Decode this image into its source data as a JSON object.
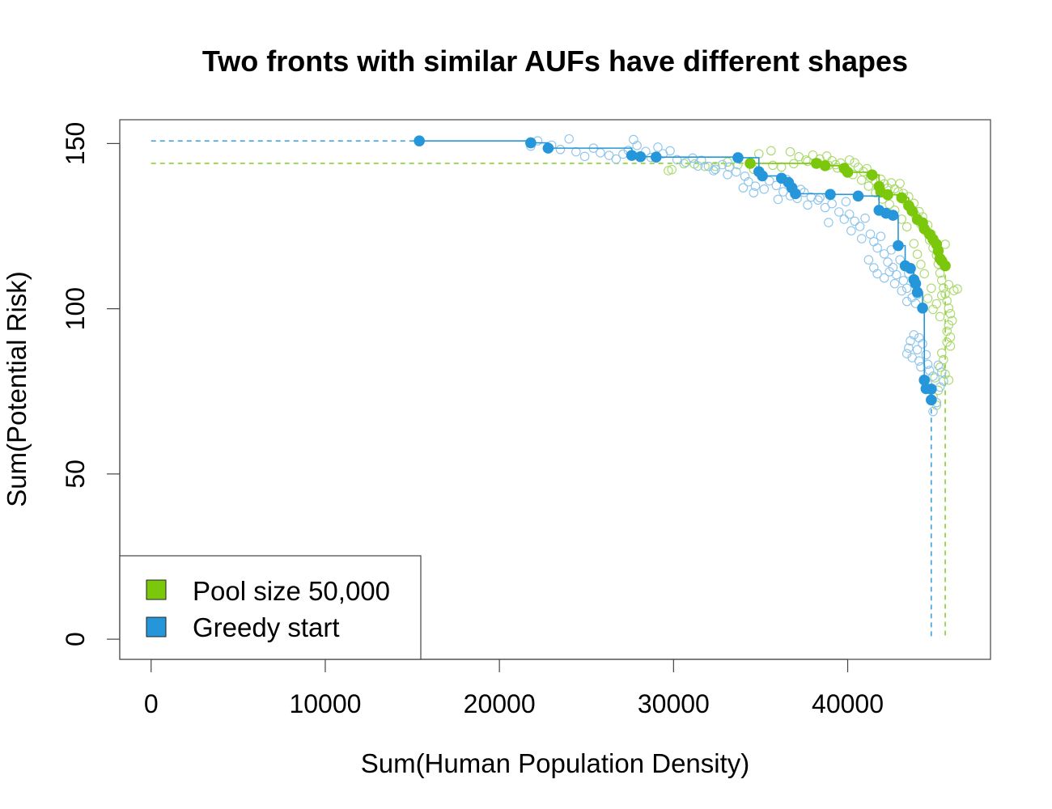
{
  "chart_data": {
    "type": "scatter",
    "title": "Two fronts with similar AUFs have different shapes",
    "xlabel": "Sum(Human Population Density)",
    "ylabel": "Sum(Potential Risk)",
    "xlim": [
      -1800,
      48200
    ],
    "ylim": [
      -6.1,
      157.2
    ],
    "x_ticks": [
      0,
      10000,
      20000,
      30000,
      40000
    ],
    "x_tick_labels": [
      "0",
      "10000",
      "20000",
      "30000",
      "40000"
    ],
    "y_ticks": [
      0,
      50,
      100,
      150
    ],
    "y_tick_labels": [
      "0",
      "50",
      "100",
      "150"
    ],
    "grid": false,
    "legend_position": "bottom-left",
    "legend": [
      {
        "label": "Pool size 50,000",
        "color": "#7ac70c"
      },
      {
        "label": "Greedy start",
        "color": "#2596d9"
      }
    ],
    "series": [
      {
        "name": "Pool size 50,000",
        "color": "#7ac70c",
        "light_color": "#a9d96a",
        "front": [
          [
            34400,
            144
          ],
          [
            38200,
            144
          ],
          [
            38700,
            143.3
          ],
          [
            39800,
            142.5
          ],
          [
            40000,
            141.3
          ],
          [
            41400,
            140.5
          ],
          [
            41800,
            137
          ],
          [
            41900,
            135.3
          ],
          [
            42300,
            134.5
          ],
          [
            43100,
            133.6
          ],
          [
            43500,
            131.2
          ],
          [
            43700,
            129.6
          ],
          [
            44000,
            127
          ],
          [
            44300,
            126
          ],
          [
            44400,
            124.2
          ],
          [
            44700,
            122.5
          ],
          [
            44900,
            121
          ],
          [
            45100,
            119.5
          ],
          [
            45200,
            117.5
          ],
          [
            45300,
            115.2
          ],
          [
            45400,
            114.5
          ],
          [
            45600,
            113
          ]
        ],
        "front_x_extreme": 45600,
        "front_y_extreme": 144,
        "cloud": [
          [
            36700,
            147.5
          ],
          [
            37200,
            146
          ],
          [
            37600,
            145
          ],
          [
            38000,
            146.5
          ],
          [
            38400,
            145.3
          ],
          [
            38800,
            146.2
          ],
          [
            39100,
            144.8
          ],
          [
            39300,
            143.6
          ],
          [
            39600,
            144.1
          ],
          [
            40100,
            145
          ],
          [
            40400,
            144.2
          ],
          [
            40600,
            142.8
          ],
          [
            40900,
            141.5
          ],
          [
            41100,
            142.4
          ],
          [
            41300,
            139.8
          ],
          [
            41600,
            138.6
          ],
          [
            41900,
            139.2
          ],
          [
            42100,
            137.8
          ],
          [
            42300,
            136.5
          ],
          [
            42500,
            138.1
          ],
          [
            42700,
            136.3
          ],
          [
            42900,
            135.4
          ],
          [
            43000,
            137.9
          ],
          [
            43200,
            134.9
          ],
          [
            43300,
            132.8
          ],
          [
            43500,
            133.9
          ],
          [
            43600,
            130.6
          ],
          [
            43800,
            131.9
          ],
          [
            43900,
            128.3
          ],
          [
            44100,
            129.4
          ],
          [
            44200,
            125.6
          ],
          [
            44300,
            127.8
          ],
          [
            44500,
            123.5
          ],
          [
            44600,
            125.3
          ],
          [
            44700,
            120.8
          ],
          [
            44800,
            122.6
          ],
          [
            44900,
            118.4
          ],
          [
            45000,
            120.1
          ],
          [
            45100,
            116.2
          ],
          [
            45200,
            113.5
          ],
          [
            45300,
            110.8
          ],
          [
            45400,
            108.6
          ],
          [
            45500,
            106.3
          ],
          [
            45600,
            104.5
          ],
          [
            45700,
            102.4
          ],
          [
            45800,
            100.2
          ],
          [
            45900,
            98.5
          ],
          [
            46000,
            96.4
          ],
          [
            45800,
            95.1
          ],
          [
            45400,
            104
          ],
          [
            45100,
            101.5
          ],
          [
            44900,
            99.8
          ],
          [
            45300,
            97.6
          ],
          [
            45700,
            93.2
          ],
          [
            45900,
            91.4
          ],
          [
            46100,
            105.5
          ],
          [
            46300,
            106
          ],
          [
            45800,
            107.3
          ],
          [
            45600,
            119.5
          ],
          [
            44800,
            106.2
          ],
          [
            44600,
            103.1
          ],
          [
            44400,
            110.6
          ],
          [
            44200,
            113.4
          ],
          [
            44000,
            116.5
          ],
          [
            43800,
            119.7
          ],
          [
            43400,
            124.8
          ],
          [
            43100,
            127.1
          ],
          [
            42700,
            129.8
          ],
          [
            42400,
            131.6
          ],
          [
            42000,
            133.2
          ],
          [
            41600,
            135.1
          ],
          [
            41200,
            137.1
          ],
          [
            40800,
            138.9
          ],
          [
            40300,
            140.6
          ],
          [
            39900,
            141.9
          ],
          [
            39400,
            142.6
          ],
          [
            38900,
            143.4
          ],
          [
            38300,
            144.1
          ],
          [
            37700,
            144.6
          ],
          [
            36900,
            143.9
          ],
          [
            36200,
            142.9
          ],
          [
            35700,
            143.4
          ],
          [
            34900,
            146.9
          ],
          [
            35600,
            147.8
          ],
          [
            34600,
            142.2
          ],
          [
            33700,
            143.6
          ],
          [
            33100,
            144.4
          ],
          [
            32400,
            143.1
          ],
          [
            30600,
            143.9
          ],
          [
            29900,
            142.1
          ],
          [
            29700,
            141.8
          ],
          [
            31200,
            143.8
          ],
          [
            31800,
            143.1
          ],
          [
            45900,
            88.7
          ],
          [
            45300,
            82.3
          ],
          [
            45600,
            80.2
          ],
          [
            45800,
            78.4
          ],
          [
            45500,
            84.6
          ],
          [
            45000,
            79.1
          ],
          [
            45200,
            75.3
          ],
          [
            44900,
            73.4
          ],
          [
            45100,
            70.8
          ],
          [
            45400,
            86.6
          ],
          [
            45700,
            89.9
          ]
        ]
      },
      {
        "name": "Greedy start",
        "color": "#2596d9",
        "light_color": "#8cc4eb",
        "front": [
          [
            15400,
            150.8
          ],
          [
            21800,
            150.2
          ],
          [
            22800,
            148.6
          ],
          [
            27600,
            146.4
          ],
          [
            28100,
            146
          ],
          [
            29000,
            145.9
          ],
          [
            33700,
            145.7
          ],
          [
            34900,
            141.5
          ],
          [
            35100,
            140.2
          ],
          [
            36200,
            139.5
          ],
          [
            36600,
            138.2
          ],
          [
            36800,
            136.6
          ],
          [
            37000,
            134.8
          ],
          [
            39000,
            134.6
          ],
          [
            40600,
            134.1
          ],
          [
            41800,
            129.8
          ],
          [
            42200,
            128.9
          ],
          [
            42600,
            128.3
          ],
          [
            42900,
            119.1
          ],
          [
            43300,
            113
          ],
          [
            43600,
            112.2
          ],
          [
            43800,
            108.8
          ],
          [
            43900,
            107.6
          ],
          [
            44000,
            105
          ],
          [
            44300,
            100.2
          ],
          [
            44400,
            78.4
          ],
          [
            44500,
            75.8
          ],
          [
            44800,
            75.7
          ],
          [
            44800,
            72.4
          ]
        ],
        "front_x_extreme": 44800,
        "front_y_extreme": 150.8,
        "cloud": [
          [
            21800,
            149.2
          ],
          [
            22200,
            150.8
          ],
          [
            23000,
            149.5
          ],
          [
            23500,
            148.2
          ],
          [
            24000,
            151.4
          ],
          [
            24400,
            147.5
          ],
          [
            24900,
            146.1
          ],
          [
            25400,
            148.6
          ],
          [
            25800,
            147.2
          ],
          [
            26300,
            146.4
          ],
          [
            26700,
            145.3
          ],
          [
            27100,
            146.8
          ],
          [
            27400,
            147.9
          ],
          [
            27700,
            151.2
          ],
          [
            27900,
            149.4
          ],
          [
            28400,
            147.6
          ],
          [
            28700,
            145.8
          ],
          [
            29100,
            148.9
          ],
          [
            29400,
            146.9
          ],
          [
            29800,
            147.8
          ],
          [
            30200,
            145.1
          ],
          [
            30700,
            144.3
          ],
          [
            31100,
            145.6
          ],
          [
            31600,
            144.9
          ],
          [
            32000,
            143.1
          ],
          [
            32400,
            142.2
          ],
          [
            32800,
            143.6
          ],
          [
            33200,
            142.9
          ],
          [
            33600,
            141.4
          ],
          [
            34100,
            140.1
          ],
          [
            34300,
            138.4
          ],
          [
            34700,
            137.1
          ],
          [
            35200,
            136.2
          ],
          [
            35500,
            138.7
          ],
          [
            35900,
            137.3
          ],
          [
            36300,
            135.4
          ],
          [
            36700,
            134.2
          ],
          [
            37100,
            133.4
          ],
          [
            37500,
            135.2
          ],
          [
            37900,
            133.8
          ],
          [
            38300,
            132.9
          ],
          [
            38700,
            130.6
          ],
          [
            39100,
            131.8
          ],
          [
            39500,
            129.3
          ],
          [
            39800,
            127.1
          ],
          [
            40100,
            128.6
          ],
          [
            40400,
            126.5
          ],
          [
            40700,
            124.9
          ],
          [
            41000,
            127.4
          ],
          [
            41300,
            122.6
          ],
          [
            41500,
            120.3
          ],
          [
            41700,
            118.4
          ],
          [
            41900,
            121.9
          ],
          [
            42100,
            116.6
          ],
          [
            42300,
            114.1
          ],
          [
            42500,
            117.8
          ],
          [
            42600,
            112.5
          ],
          [
            42800,
            110.3
          ],
          [
            43000,
            114.8
          ],
          [
            43200,
            108.5
          ],
          [
            43400,
            106.2
          ],
          [
            43500,
            110.7
          ],
          [
            43700,
            103.4
          ],
          [
            43900,
            101.6
          ],
          [
            44000,
            104.3
          ],
          [
            41200,
            114.8
          ],
          [
            41500,
            112.4
          ],
          [
            41700,
            110.6
          ],
          [
            42100,
            109.3
          ],
          [
            42400,
            111.2
          ],
          [
            42700,
            107.6
          ],
          [
            43100,
            105.4
          ],
          [
            43400,
            102.2
          ],
          [
            43800,
            92.1
          ],
          [
            43600,
            90.3
          ],
          [
            43500,
            88.1
          ],
          [
            43400,
            86.4
          ],
          [
            43700,
            85.2
          ],
          [
            44000,
            87.6
          ],
          [
            44100,
            84.2
          ],
          [
            44200,
            82.4
          ],
          [
            44500,
            86.1
          ],
          [
            44600,
            83.2
          ],
          [
            44700,
            81.3
          ],
          [
            44900,
            79.6
          ],
          [
            44300,
            89.4
          ],
          [
            44100,
            91.2
          ],
          [
            44600,
            77.2
          ],
          [
            44900,
            68.9
          ],
          [
            45100,
            71.6
          ],
          [
            45300,
            76.3
          ],
          [
            45400,
            80.8
          ],
          [
            45200,
            82.9
          ],
          [
            45500,
            78.1
          ],
          [
            33100,
            140.6
          ],
          [
            34000,
            136.6
          ],
          [
            34600,
            135.1
          ],
          [
            36000,
            133.1
          ],
          [
            37700,
            131.4
          ],
          [
            38900,
            126.1
          ],
          [
            40200,
            123.6
          ],
          [
            40800,
            121.2
          ],
          [
            38400,
            133.6
          ],
          [
            39900,
            132.4
          ],
          [
            37300,
            136.1
          ],
          [
            36500,
            139.1
          ],
          [
            32300,
            141.8
          ],
          [
            31400,
            143.2
          ]
        ]
      }
    ]
  }
}
